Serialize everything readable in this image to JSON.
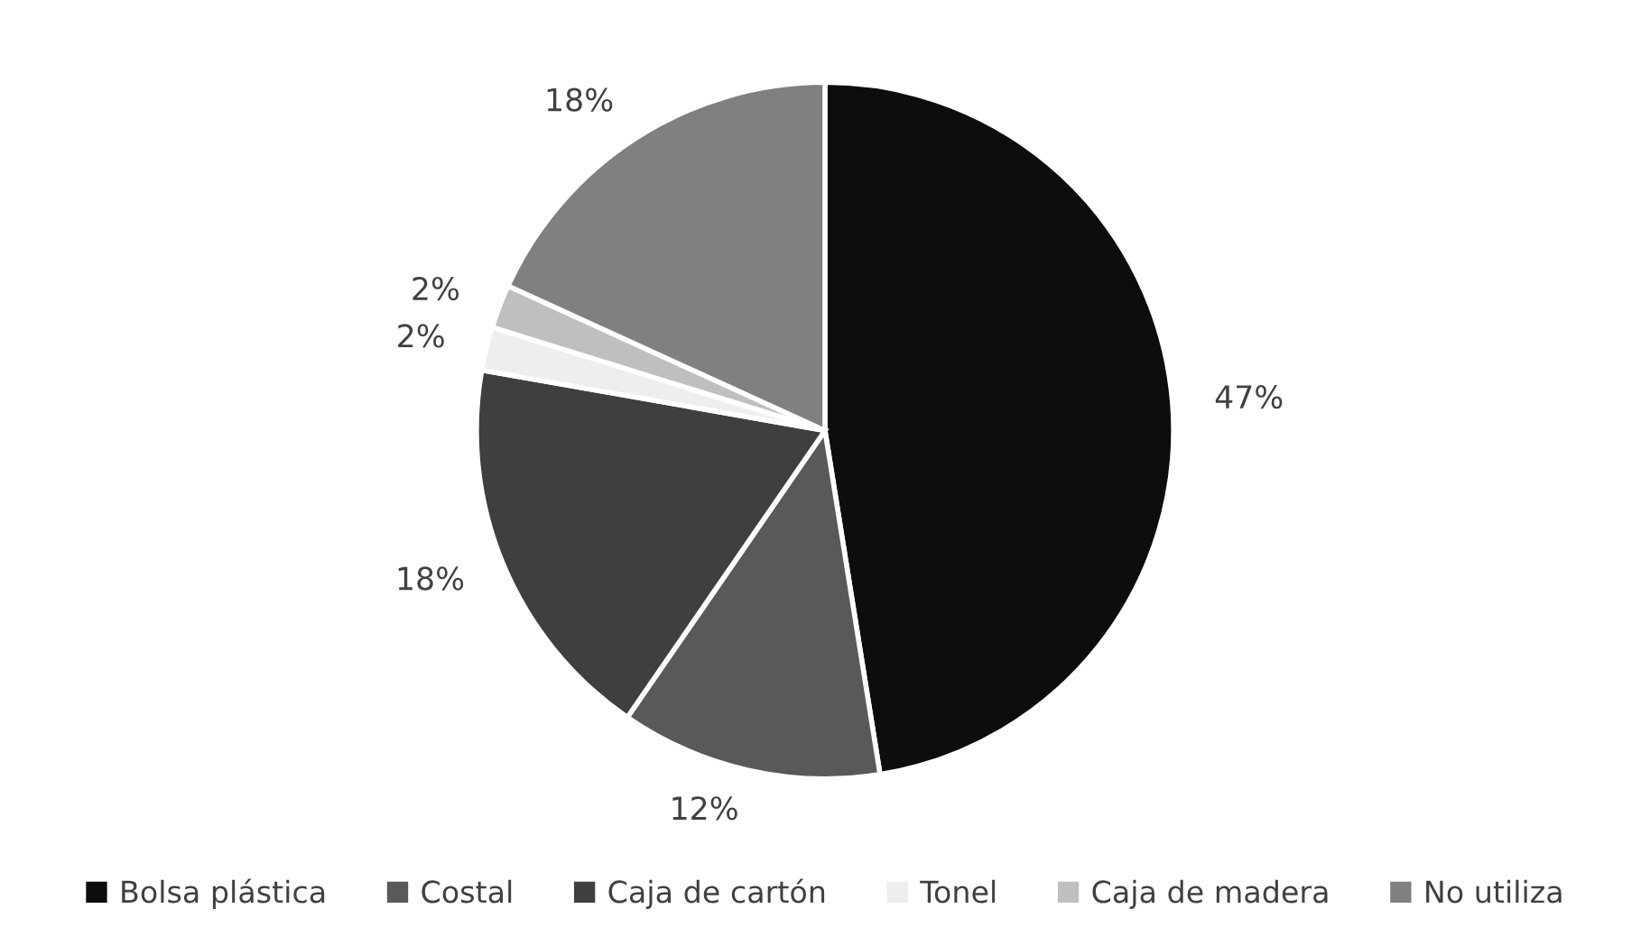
{
  "chart_data": {
    "type": "pie",
    "categories": [
      "Bolsa plástica",
      "Costal",
      "Caja de cartón",
      "Tonel",
      "Caja de madera",
      "No utiliza"
    ],
    "values": [
      47,
      12,
      18,
      2,
      2,
      18
    ],
    "colors": [
      "#0d0d0d",
      "#595959",
      "#3f3f3f",
      "#eeeeee",
      "#bfbfbf",
      "#808080"
    ],
    "value_labels": [
      "47%",
      "12%",
      "18%",
      "2%",
      "2%",
      "18%"
    ],
    "legend": "bottom"
  }
}
